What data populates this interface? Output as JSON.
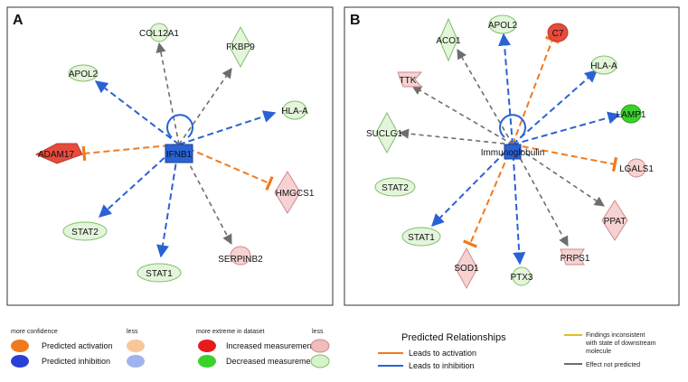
{
  "panels": [
    {
      "letter": "A",
      "hub": {
        "label": "IFNB1"
      },
      "nodes": [
        {
          "label": "COL12A1"
        },
        {
          "label": "FKBP9"
        },
        {
          "label": "APOL2"
        },
        {
          "label": "HLA-A"
        },
        {
          "label": "ADAM17"
        },
        {
          "label": "HMGCS1"
        },
        {
          "label": "STAT2"
        },
        {
          "label": "STAT1"
        },
        {
          "label": "SERPINB2"
        }
      ]
    },
    {
      "letter": "B",
      "hub": {
        "label": "Immunoglobulin"
      },
      "nodes": [
        {
          "label": "ACO1"
        },
        {
          "label": "APOL2"
        },
        {
          "label": "C7"
        },
        {
          "label": "TTK"
        },
        {
          "label": "HLA-A"
        },
        {
          "label": "LAMP1"
        },
        {
          "label": "SUCLG1"
        },
        {
          "label": "LGALS1"
        },
        {
          "label": "STAT2"
        },
        {
          "label": "PPAT"
        },
        {
          "label": "STAT1"
        },
        {
          "label": "SOD1"
        },
        {
          "label": "PTX3"
        },
        {
          "label": "PRPS1"
        }
      ]
    }
  ],
  "legend": {
    "confidence": {
      "more": "more confidence",
      "less": "less",
      "activation": "Predicted activation",
      "inhibition": "Predicted inhibition"
    },
    "measurement": {
      "more": "more extreme in dataset",
      "less": "less",
      "increased": "Increased measurement",
      "decreased": "Decreased measurement"
    },
    "relationships": {
      "title": "Predicted Relationships",
      "activation": "Leads to activation",
      "inhibition": "Leads to inhibition"
    },
    "other": {
      "inconsistent_1": "Findings inconsistent",
      "inconsistent_2": "with state of downstream",
      "inconsistent_3": "molecule",
      "not_predicted": "Effect not predicted"
    }
  },
  "colors": {
    "activation": "#f07a1e",
    "inhibition": "#2a62d6",
    "not_predicted": "#7a7a7a",
    "inconsistent": "#e0c020",
    "green_node": "#e4f5dc",
    "green_stroke": "#7fbf6a",
    "red_node": "#f6d2d2",
    "red_stroke": "#d08a8a",
    "strong_red": "#e84a3c",
    "strong_green": "#3bd12c"
  }
}
